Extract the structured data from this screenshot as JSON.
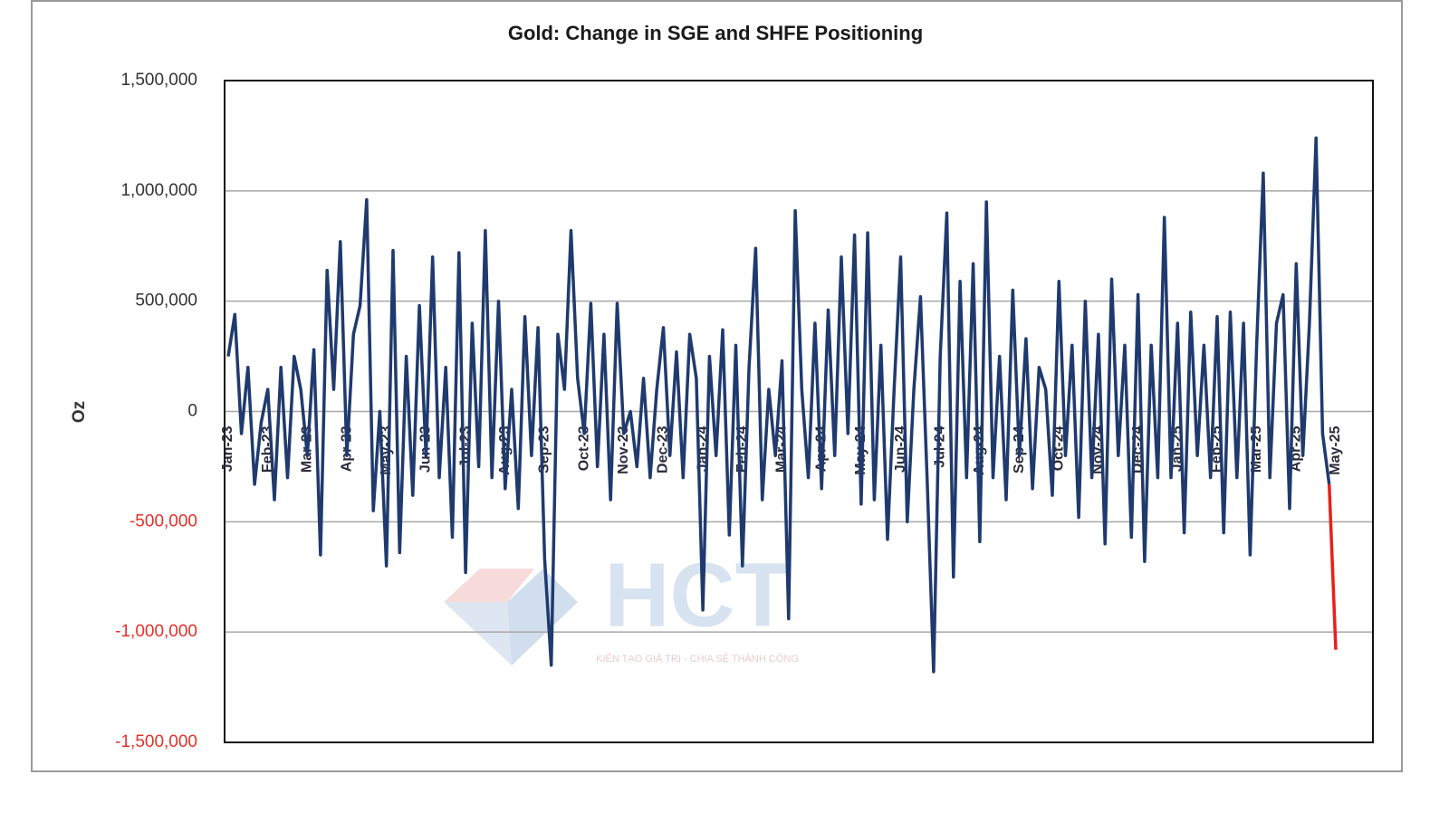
{
  "chart_data": {
    "type": "line",
    "title": "Gold: Change in SGE and SHFE Positioning",
    "y_label": "Oz",
    "watermark": {
      "logo": "HCT",
      "tagline": "KIẾN TẠO GIÁ TRỊ - CHIA SẺ THÀNH CÔNG"
    },
    "categories": [
      "Jan-23",
      null,
      null,
      null,
      null,
      null,
      "Feb-23",
      null,
      null,
      null,
      null,
      null,
      "Mar-23",
      null,
      null,
      null,
      null,
      null,
      "Apr-23",
      null,
      null,
      null,
      null,
      null,
      "May-23",
      null,
      null,
      null,
      null,
      null,
      "Jun-23",
      null,
      null,
      null,
      null,
      null,
      "Jul-23",
      null,
      null,
      null,
      null,
      null,
      "Aug-23",
      null,
      null,
      null,
      null,
      null,
      "Sep-23",
      null,
      null,
      null,
      null,
      null,
      "Oct-23",
      null,
      null,
      null,
      null,
      null,
      "Nov-23",
      null,
      null,
      null,
      null,
      null,
      "Dec-23",
      null,
      null,
      null,
      null,
      null,
      "Jan-24",
      null,
      null,
      null,
      null,
      null,
      "Feb-24",
      null,
      null,
      null,
      null,
      null,
      "Mar-24",
      null,
      null,
      null,
      null,
      null,
      "Apr-24",
      null,
      null,
      null,
      null,
      null,
      "May-24",
      null,
      null,
      null,
      null,
      null,
      "Jun-24",
      null,
      null,
      null,
      null,
      null,
      "Jul-24",
      null,
      null,
      null,
      null,
      null,
      "Aug-24",
      null,
      null,
      null,
      null,
      null,
      "Sep-24",
      null,
      null,
      null,
      null,
      null,
      "Oct-24",
      null,
      null,
      null,
      null,
      null,
      "Nov-24",
      null,
      null,
      null,
      null,
      null,
      "Dec-24",
      null,
      null,
      null,
      null,
      null,
      "Jan-25",
      null,
      null,
      null,
      null,
      null,
      "Feb-25",
      null,
      null,
      null,
      null,
      null,
      "Mar-25",
      null,
      null,
      null,
      null,
      null,
      "Apr-25",
      null,
      null,
      null,
      null,
      null,
      "May-25"
    ],
    "series": [
      {
        "color": "#1f3a6e",
        "values": [
          250000,
          440000,
          -100000,
          200000,
          -330000,
          -50000,
          100000,
          -400000,
          200000,
          -300000,
          250000,
          100000,
          -200000,
          280000,
          -650000,
          640000,
          100000,
          770000,
          -200000,
          350000,
          480000,
          960000,
          -450000,
          0,
          -700000,
          730000,
          -640000,
          250000,
          -380000,
          480000,
          -200000,
          700000,
          -300000,
          200000,
          -570000,
          720000,
          -730000,
          400000,
          -250000,
          820000,
          -300000,
          500000,
          -350000,
          100000,
          -440000,
          430000,
          -200000,
          380000,
          -670000,
          -1150000,
          350000,
          100000,
          820000,
          150000,
          -100000,
          490000,
          -250000,
          350000,
          -400000,
          490000,
          -100000,
          0,
          -250000,
          150000,
          -300000,
          100000,
          380000,
          -200000,
          270000,
          -300000,
          350000,
          150000,
          -900000,
          250000,
          -200000,
          370000,
          -560000,
          300000,
          -700000,
          200000,
          740000,
          -400000,
          100000,
          -200000,
          230000,
          -940000,
          910000,
          100000,
          -300000,
          400000,
          -350000,
          460000,
          -200000,
          700000,
          -100000,
          800000,
          -420000,
          810000,
          -400000,
          300000,
          -580000,
          100000,
          700000,
          -500000,
          100000,
          520000,
          -300000,
          -1180000,
          250000,
          900000,
          -750000,
          590000,
          -300000,
          670000,
          -590000,
          950000,
          -300000,
          250000,
          -400000,
          550000,
          -200000,
          330000,
          -350000,
          200000,
          100000,
          -380000,
          590000,
          -200000,
          300000,
          -480000,
          500000,
          -300000,
          350000,
          -600000,
          600000,
          -200000,
          300000,
          -570000,
          530000,
          -680000,
          300000,
          -300000,
          880000,
          -300000,
          400000,
          -550000,
          450000,
          -200000,
          300000,
          -300000,
          430000,
          -550000,
          450000,
          -300000,
          400000,
          -650000,
          300000,
          1080000,
          -300000,
          400000,
          530000,
          -440000,
          670000,
          -200000,
          400000,
          1240000,
          -100000,
          -330000,
          null
        ]
      },
      {
        "color": "#e8201a",
        "values": [
          null,
          null,
          null,
          null,
          null,
          null,
          null,
          null,
          null,
          null,
          null,
          null,
          null,
          null,
          null,
          null,
          null,
          null,
          null,
          null,
          null,
          null,
          null,
          null,
          null,
          null,
          null,
          null,
          null,
          null,
          null,
          null,
          null,
          null,
          null,
          null,
          null,
          null,
          null,
          null,
          null,
          null,
          null,
          null,
          null,
          null,
          null,
          null,
          null,
          null,
          null,
          null,
          null,
          null,
          null,
          null,
          null,
          null,
          null,
          null,
          null,
          null,
          null,
          null,
          null,
          null,
          null,
          null,
          null,
          null,
          null,
          null,
          null,
          null,
          null,
          null,
          null,
          null,
          null,
          null,
          null,
          null,
          null,
          null,
          null,
          null,
          null,
          null,
          null,
          null,
          null,
          null,
          null,
          null,
          null,
          null,
          null,
          null,
          null,
          null,
          null,
          null,
          null,
          null,
          null,
          null,
          null,
          null,
          null,
          null,
          null,
          null,
          null,
          null,
          null,
          null,
          null,
          null,
          null,
          null,
          null,
          null,
          null,
          null,
          null,
          null,
          null,
          null,
          null,
          null,
          null,
          null,
          null,
          null,
          null,
          null,
          null,
          null,
          null,
          null,
          null,
          null,
          null,
          null,
          null,
          null,
          null,
          null,
          null,
          null,
          null,
          null,
          null,
          null,
          null,
          null,
          null,
          null,
          null,
          null,
          null,
          null,
          null,
          null,
          null,
          null,
          null,
          -330000,
          -1080000
        ]
      }
    ],
    "ylim": [
      -1500000,
      1500000
    ],
    "yticks": [
      {
        "value": -1500000,
        "label": "-1,500,000"
      },
      {
        "value": -1000000,
        "label": "-1,000,000"
      },
      {
        "value": -500000,
        "label": "-500,000"
      },
      0,
      {
        "value": 500000,
        "label": "500,000"
      },
      {
        "value": 1000000,
        "label": "1,000,000"
      },
      {
        "value": 1500000,
        "label": "1,500,000"
      }
    ],
    "grid": true,
    "negative_tick_color": "#e8302a"
  }
}
